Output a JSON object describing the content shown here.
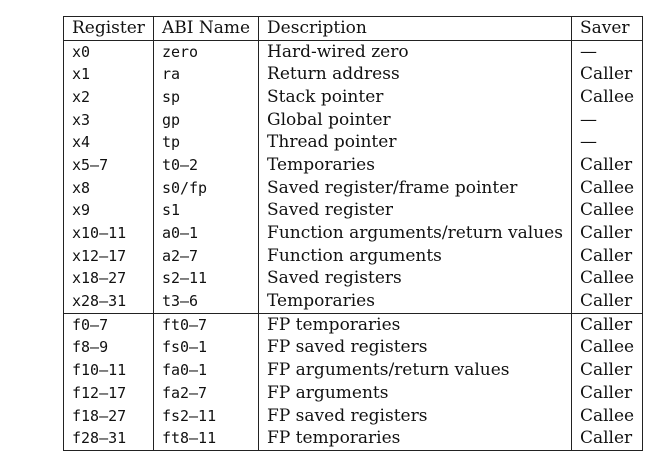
{
  "table": {
    "headers": [
      "Register",
      "ABI Name",
      "Description",
      "Saver"
    ],
    "rows": [
      {
        "register": "x0",
        "abi": "zero",
        "description": "Hard-wired zero",
        "saver": "—"
      },
      {
        "register": "x1",
        "abi": "ra",
        "description": "Return address",
        "saver": "Caller"
      },
      {
        "register": "x2",
        "abi": "sp",
        "description": "Stack pointer",
        "saver": "Callee"
      },
      {
        "register": "x3",
        "abi": "gp",
        "description": "Global pointer",
        "saver": "—"
      },
      {
        "register": "x4",
        "abi": "tp",
        "description": "Thread pointer",
        "saver": "—"
      },
      {
        "register": "x5–7",
        "abi": "t0–2",
        "description": "Temporaries",
        "saver": "Caller"
      },
      {
        "register": "x8",
        "abi": "s0/fp",
        "description": "Saved register/frame pointer",
        "saver": "Callee"
      },
      {
        "register": "x9",
        "abi": "s1",
        "description": "Saved register",
        "saver": "Callee"
      },
      {
        "register": "x10–11",
        "abi": "a0–1",
        "description": "Function arguments/return values",
        "saver": "Caller"
      },
      {
        "register": "x12–17",
        "abi": "a2–7",
        "description": "Function arguments",
        "saver": "Caller"
      },
      {
        "register": "x18–27",
        "abi": "s2–11",
        "description": "Saved registers",
        "saver": "Callee"
      },
      {
        "register": "x28–31",
        "abi": "t3–6",
        "description": "Temporaries",
        "saver": "Caller"
      },
      {
        "register": "f0–7",
        "abi": "ft0–7",
        "description": "FP temporaries",
        "saver": "Caller"
      },
      {
        "register": "f8–9",
        "abi": "fs0–1",
        "description": "FP saved registers",
        "saver": "Callee"
      },
      {
        "register": "f10–11",
        "abi": "fa0–1",
        "description": "FP arguments/return values",
        "saver": "Caller"
      },
      {
        "register": "f12–17",
        "abi": "fa2–7",
        "description": "FP arguments",
        "saver": "Caller"
      },
      {
        "register": "f18–27",
        "abi": "fs2–11",
        "description": "FP saved registers",
        "saver": "Callee"
      },
      {
        "register": "f28–31",
        "abi": "ft8–11",
        "description": "FP temporaries",
        "saver": "Caller"
      }
    ]
  }
}
